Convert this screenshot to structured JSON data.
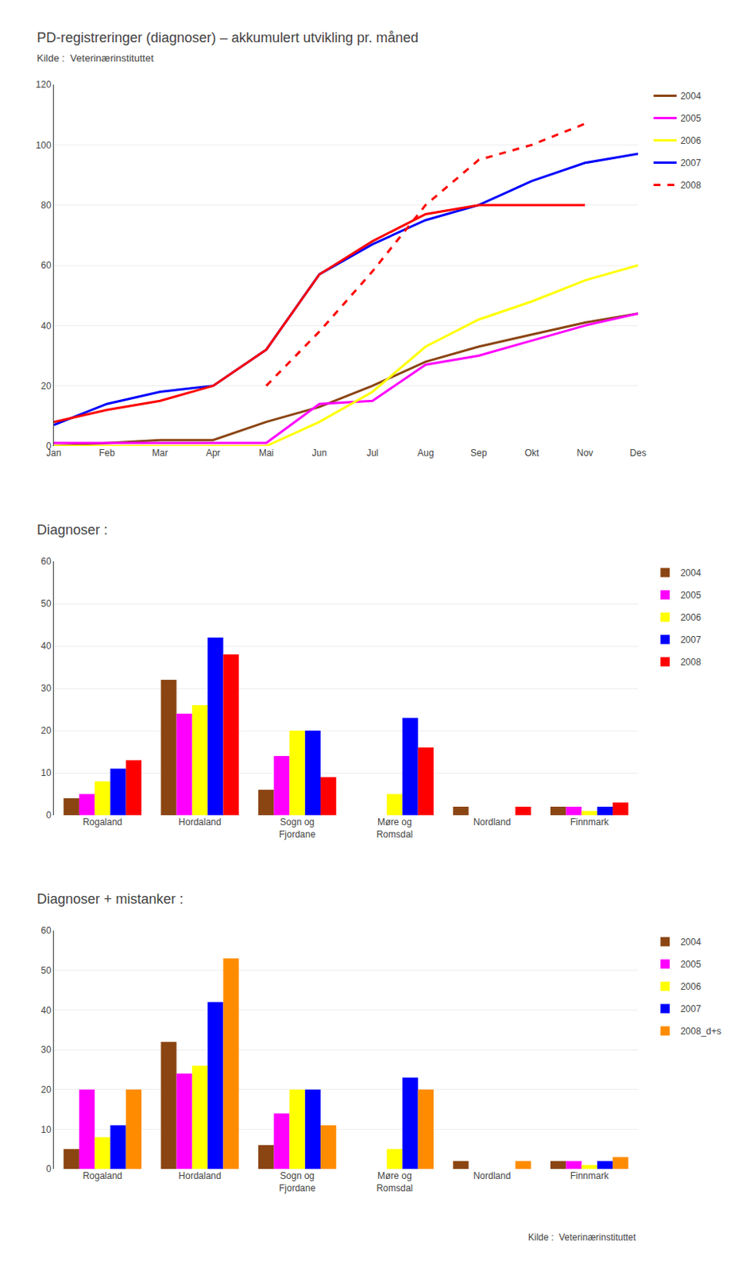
{
  "chart_data": [
    {
      "type": "line",
      "title": "PD-registreringer (diagnoser) – akkumulert utvikling pr. måned",
      "subtitle": "Kilde :  Veterinærinstituttet",
      "categories": [
        "Jan",
        "Feb",
        "Mar",
        "Apr",
        "Mai",
        "Jun",
        "Jul",
        "Aug",
        "Sep",
        "Okt",
        "Nov",
        "Des"
      ],
      "series": [
        {
          "name": "2004",
          "color": "#8B4513",
          "line_style": "solid",
          "values": [
            0,
            1,
            2,
            2,
            8,
            13,
            20,
            28,
            33,
            37,
            41,
            44
          ]
        },
        {
          "name": "2005",
          "color": "#FF00FF",
          "line_style": "solid",
          "values": [
            1,
            1,
            1,
            1,
            1,
            14,
            15,
            27,
            30,
            35,
            40,
            44
          ]
        },
        {
          "name": "2006",
          "color": "#FFFF00",
          "line_style": "solid",
          "values": [
            0,
            0,
            0,
            0,
            0,
            8,
            18,
            33,
            42,
            48,
            55,
            60
          ]
        },
        {
          "name": "2007",
          "color": "#0000FF",
          "line_style": "solid",
          "values": [
            7,
            14,
            18,
            20,
            32,
            57,
            67,
            75,
            80,
            88,
            94,
            97
          ]
        },
        {
          "name": "2008",
          "color": "#FF0000",
          "line_style": "solid",
          "values": [
            8,
            12,
            15,
            20,
            32,
            57,
            68,
            77,
            80,
            80,
            80,
            null
          ]
        },
        {
          "name": "2008",
          "color": "#FF0000",
          "line_style": "dashed",
          "values": [
            null,
            null,
            null,
            null,
            20,
            38,
            58,
            80,
            95,
            100,
            107,
            null
          ]
        }
      ],
      "ylim": [
        0,
        120
      ],
      "yticks": [
        0,
        20,
        40,
        60,
        80,
        100,
        120
      ],
      "grid": true,
      "legend": "right"
    },
    {
      "type": "bar",
      "title": "Diagnoser :",
      "categories": [
        "Rogaland",
        "Hordaland",
        "Sogn og\nFjordane",
        "Møre og\nRomsdal",
        "Nordland",
        "Finnmark"
      ],
      "series": [
        {
          "name": "2004",
          "color": "#8B4513",
          "values": [
            4,
            32,
            6,
            0,
            2,
            2
          ]
        },
        {
          "name": "2005",
          "color": "#FF00FF",
          "values": [
            5,
            24,
            14,
            0,
            0,
            2
          ]
        },
        {
          "name": "2006",
          "color": "#FFFF00",
          "values": [
            8,
            26,
            20,
            5,
            0,
            1
          ]
        },
        {
          "name": "2007",
          "color": "#0000FF",
          "values": [
            11,
            42,
            20,
            23,
            0,
            2
          ]
        },
        {
          "name": "2008",
          "color": "#FF0000",
          "values": [
            13,
            38,
            9,
            16,
            2,
            3
          ]
        }
      ],
      "ylim": [
        0,
        60
      ],
      "yticks": [
        0,
        10,
        20,
        30,
        40,
        50,
        60
      ],
      "grid": true,
      "legend": "right"
    },
    {
      "type": "bar",
      "title": "Diagnoser + mistanker :",
      "categories": [
        "Rogaland",
        "Hordaland",
        "Sogn og\nFjordane",
        "Møre og\nRomsdal",
        "Nordland",
        "Finnmark"
      ],
      "series": [
        {
          "name": "2004",
          "color": "#8B4513",
          "values": [
            5,
            32,
            6,
            0,
            2,
            2
          ]
        },
        {
          "name": "2005",
          "color": "#FF00FF",
          "values": [
            20,
            24,
            14,
            0,
            0,
            2
          ]
        },
        {
          "name": "2006",
          "color": "#FFFF00",
          "values": [
            8,
            26,
            20,
            5,
            0,
            1
          ]
        },
        {
          "name": "2007",
          "color": "#0000FF",
          "values": [
            11,
            42,
            20,
            23,
            0,
            2
          ]
        },
        {
          "name": "2008_d+s",
          "color": "#FF8C00",
          "values": [
            20,
            53,
            11,
            20,
            2,
            3
          ]
        }
      ],
      "ylim": [
        0,
        60
      ],
      "yticks": [
        0,
        10,
        20,
        30,
        40,
        50,
        60
      ],
      "grid": true,
      "legend": "right",
      "annotations": [
        "Kilde :  Veterinærinstituttet"
      ]
    }
  ]
}
